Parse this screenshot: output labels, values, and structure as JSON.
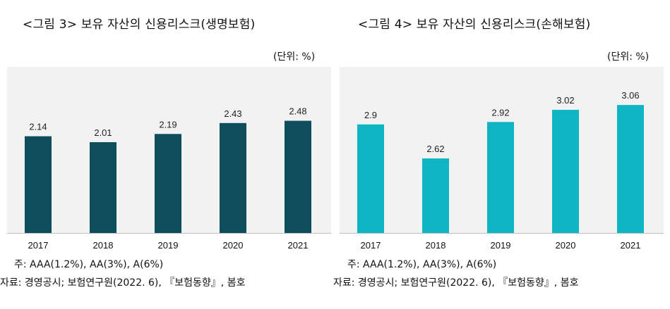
{
  "charts": {
    "left": {
      "title": "<그림 3> 보유 자산의 신용리스크(생명보험)",
      "unit": "(단위: %)",
      "note": "주: AAA(1.2%), AA(3%), A(6%)",
      "source": "자료: 경영공시; 보험연구원(2022. 6), 『보험동향』, 봄호"
    },
    "right": {
      "title": "<그림 4> 보유 자산의 신용리스크(손해보험)",
      "unit": "(단위: %)",
      "note": "주: AAA(1.2%), AA(3%), A(6%)",
      "source": "자료: 경영공시; 보험연구원(2022. 6), 『보험동향』, 봄호"
    }
  },
  "chart_data": [
    {
      "type": "bar",
      "title": "<그림 3> 보유 자산의 신용리스크(생명보험)",
      "categories": [
        "2017",
        "2018",
        "2019",
        "2020",
        "2021"
      ],
      "values": [
        2.14,
        2.01,
        2.19,
        2.43,
        2.48
      ],
      "value_labels": [
        "2.14",
        "2.01",
        "2.19",
        "2.43",
        "2.48"
      ],
      "ylim": [
        0,
        3.2
      ],
      "color": "#0d4d5c",
      "xlabel": "",
      "ylabel": ""
    },
    {
      "type": "bar",
      "title": "<그림 4> 보유 자산의 신용리스크(손해보험)",
      "categories": [
        "2017",
        "2018",
        "2019",
        "2020",
        "2021"
      ],
      "values": [
        2.9,
        2.62,
        2.92,
        3.02,
        3.06
      ],
      "value_labels": [
        "2.9",
        "2.62",
        "2.92",
        "3.02",
        "3.06"
      ],
      "ylim": [
        2.0,
        3.2
      ],
      "color": "#10b5c3",
      "xlabel": "",
      "ylabel": ""
    }
  ]
}
